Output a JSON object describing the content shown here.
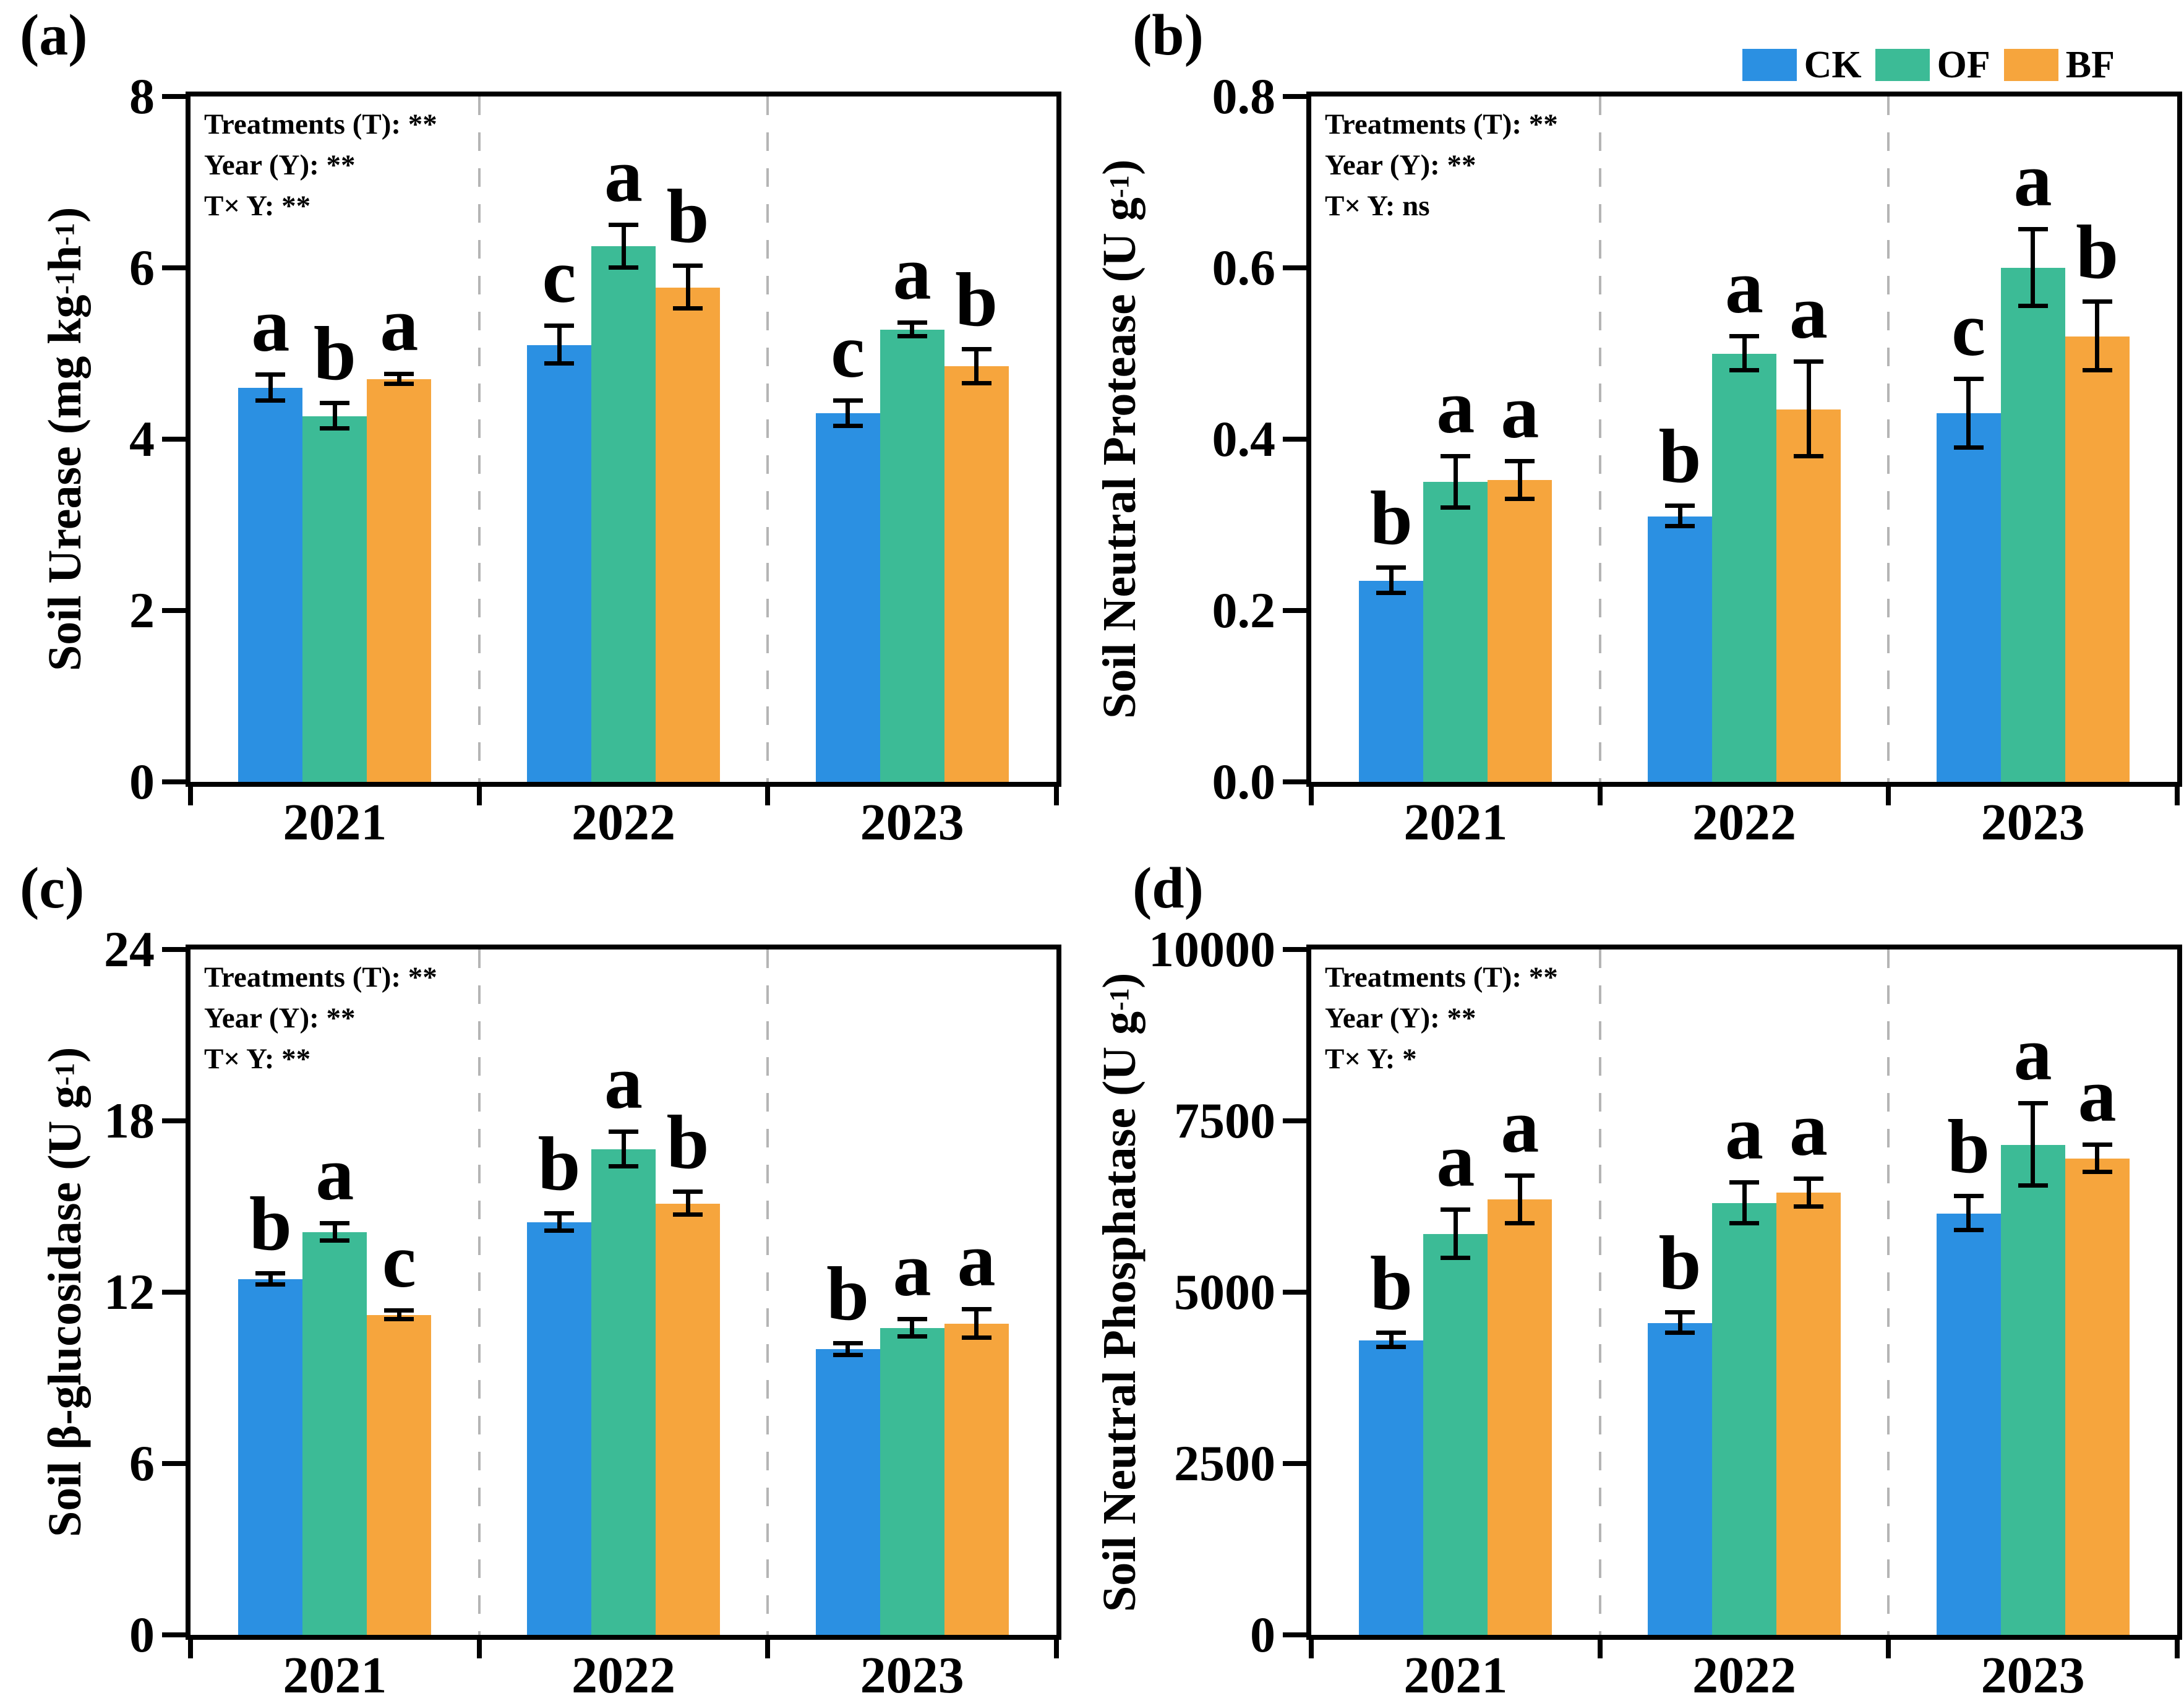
{
  "figure": {
    "background": "#ffffff",
    "axis_color": "#000000",
    "separator_color": "#b5b5b5",
    "legend": {
      "position": "top-right",
      "items": [
        {
          "label": "CK",
          "color": "#2B90E2"
        },
        {
          "label": "OF",
          "color": "#3CBB96"
        },
        {
          "label": "BF",
          "color": "#F6A53D"
        }
      ]
    }
  },
  "chart_data": [
    {
      "id": "a",
      "tag": "(a)",
      "type": "bar",
      "ylabel": "Soil Urease (mg kg^-1 h^-1)",
      "ylim": [
        0,
        8
      ],
      "yticks": [
        0,
        2,
        4,
        6,
        8
      ],
      "ytick_labels": [
        "0",
        "2",
        "4",
        "6",
        "8"
      ],
      "categories": [
        "2021",
        "2022",
        "2023"
      ],
      "annotations": [
        "Treatments (T): **",
        "Year (Y): **",
        "T× Y: **"
      ],
      "grid": false,
      "legend_position": "none",
      "series": [
        {
          "name": "CK",
          "color": "#2B90E2",
          "values": [
            4.6,
            5.1,
            4.3
          ],
          "errors": [
            0.15,
            0.22,
            0.15
          ],
          "letters": [
            "a",
            "c",
            "c"
          ]
        },
        {
          "name": "OF",
          "color": "#3CBB96",
          "values": [
            4.27,
            6.25,
            5.28
          ],
          "errors": [
            0.15,
            0.25,
            0.08
          ],
          "letters": [
            "b",
            "a",
            "a"
          ]
        },
        {
          "name": "BF",
          "color": "#F6A53D",
          "values": [
            4.7,
            5.77,
            4.85
          ],
          "errors": [
            0.06,
            0.25,
            0.2
          ],
          "letters": [
            "a",
            "b",
            "b"
          ]
        }
      ]
    },
    {
      "id": "b",
      "tag": "(b)",
      "type": "bar",
      "ylabel": "Soil Neutral Protease (U g^-1)",
      "ylim": [
        0,
        0.8
      ],
      "yticks": [
        0,
        0.2,
        0.4,
        0.6,
        0.8
      ],
      "ytick_labels": [
        "0.0",
        "0.2",
        "0.4",
        "0.6",
        "0.8"
      ],
      "categories": [
        "2021",
        "2022",
        "2023"
      ],
      "annotations": [
        "Treatments (T): **",
        "Year (Y): **",
        "T× Y: ns"
      ],
      "grid": false,
      "legend_position": "top-right",
      "series": [
        {
          "name": "CK",
          "color": "#2B90E2",
          "values": [
            0.235,
            0.31,
            0.43
          ],
          "errors": [
            0.015,
            0.012,
            0.04
          ],
          "letters": [
            "b",
            "b",
            "c"
          ]
        },
        {
          "name": "OF",
          "color": "#3CBB96",
          "values": [
            0.35,
            0.5,
            0.6
          ],
          "errors": [
            0.03,
            0.02,
            0.045
          ],
          "letters": [
            "a",
            "a",
            "a"
          ]
        },
        {
          "name": "BF",
          "color": "#F6A53D",
          "values": [
            0.352,
            0.435,
            0.52
          ],
          "errors": [
            0.022,
            0.055,
            0.04
          ],
          "letters": [
            "a",
            "a",
            "b"
          ]
        }
      ]
    },
    {
      "id": "c",
      "tag": "(c)",
      "type": "bar",
      "ylabel": "Soil β-glucosidase (U g^-1)",
      "ylim": [
        0,
        24
      ],
      "yticks": [
        0,
        6,
        12,
        18,
        24
      ],
      "ytick_labels": [
        "0",
        "6",
        "12",
        "18",
        "24"
      ],
      "categories": [
        "2021",
        "2022",
        "2023"
      ],
      "annotations": [
        "Treatments (T): **",
        "Year (Y): **",
        "T× Y: **"
      ],
      "grid": false,
      "legend_position": "none",
      "series": [
        {
          "name": "CK",
          "color": "#2B90E2",
          "values": [
            12.45,
            14.45,
            10.0
          ],
          "errors": [
            0.2,
            0.3,
            0.2
          ],
          "letters": [
            "b",
            "b",
            "b"
          ]
        },
        {
          "name": "OF",
          "color": "#3CBB96",
          "values": [
            14.1,
            17.0,
            10.75
          ],
          "errors": [
            0.3,
            0.6,
            0.3
          ],
          "letters": [
            "a",
            "a",
            "a"
          ]
        },
        {
          "name": "BF",
          "color": "#F6A53D",
          "values": [
            11.2,
            15.1,
            10.9
          ],
          "errors": [
            0.15,
            0.4,
            0.5
          ],
          "letters": [
            "c",
            "b",
            "a"
          ]
        }
      ]
    },
    {
      "id": "d",
      "tag": "(d)",
      "type": "bar",
      "ylabel": "Soil Neutral Phosphatase (U g^-1)",
      "ylim": [
        0,
        10000
      ],
      "yticks": [
        0,
        2500,
        5000,
        7500,
        10000
      ],
      "ytick_labels": [
        "0",
        "2500",
        "5000",
        "7500",
        "10000"
      ],
      "categories": [
        "2021",
        "2022",
        "2023"
      ],
      "annotations": [
        "Treatments (T): **",
        "Year (Y): **",
        "T× Y: *"
      ],
      "grid": false,
      "legend_position": "none",
      "series": [
        {
          "name": "CK",
          "color": "#2B90E2",
          "values": [
            4300,
            4550,
            6150
          ],
          "errors": [
            100,
            150,
            250
          ],
          "letters": [
            "b",
            "b",
            "b"
          ]
        },
        {
          "name": "OF",
          "color": "#3CBB96",
          "values": [
            5850,
            6300,
            7150
          ],
          "errors": [
            350,
            300,
            600
          ],
          "letters": [
            "a",
            "a",
            "a"
          ]
        },
        {
          "name": "BF",
          "color": "#F6A53D",
          "values": [
            6350,
            6450,
            6950
          ],
          "errors": [
            350,
            200,
            200
          ],
          "letters": [
            "a",
            "a",
            "a"
          ]
        }
      ]
    }
  ]
}
